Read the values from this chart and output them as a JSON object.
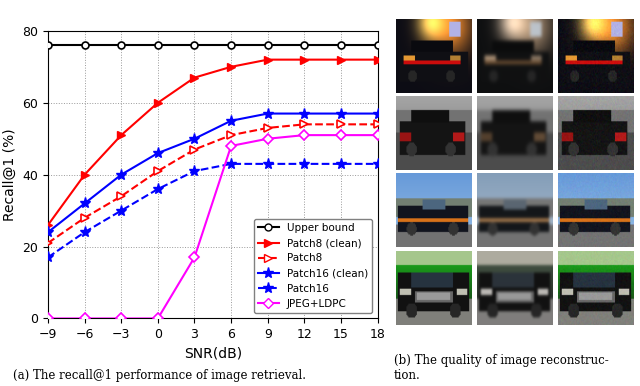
{
  "snr": [
    -9,
    -6,
    -3,
    0,
    3,
    6,
    9,
    12,
    15,
    18
  ],
  "upper_bound": [
    76,
    76,
    76,
    76,
    76,
    76,
    76,
    76,
    76,
    76
  ],
  "patch8_clean": [
    26,
    40,
    51,
    60,
    67,
    70,
    72,
    72,
    72,
    72
  ],
  "patch8": [
    21,
    28,
    34,
    41,
    47,
    51,
    53,
    54,
    54,
    54
  ],
  "patch16_clean": [
    24,
    32,
    40,
    46,
    50,
    55,
    57,
    57,
    57,
    57
  ],
  "patch16": [
    17,
    24,
    30,
    36,
    41,
    43,
    43,
    43,
    43,
    43
  ],
  "jpeg_ldpc": [
    0,
    0,
    0,
    0,
    17,
    48,
    50,
    51,
    51,
    51
  ],
  "ylabel": "Recall@1 (%)",
  "xlabel": "SNR(dB)",
  "caption_a": "(a) The recall@1 performance of image retrieval.",
  "caption_b": "(b) The quality of image reconstruc-\ntion.",
  "ylim": [
    0,
    80
  ],
  "yticks": [
    0,
    20,
    40,
    60,
    80
  ],
  "xticks": [
    -9,
    -6,
    -3,
    0,
    3,
    6,
    9,
    12,
    15,
    18
  ],
  "legend_labels": [
    "Upper bound",
    "Patch8 (clean)",
    "Patch8",
    "Patch16 (clean)",
    "Patch16",
    "JPEG+LDPC"
  ],
  "color_black": "#000000",
  "color_red": "#ff0000",
  "color_blue": "#0000ff",
  "color_magenta": "#ff00ff",
  "img_rows": 4,
  "img_cols": 3
}
